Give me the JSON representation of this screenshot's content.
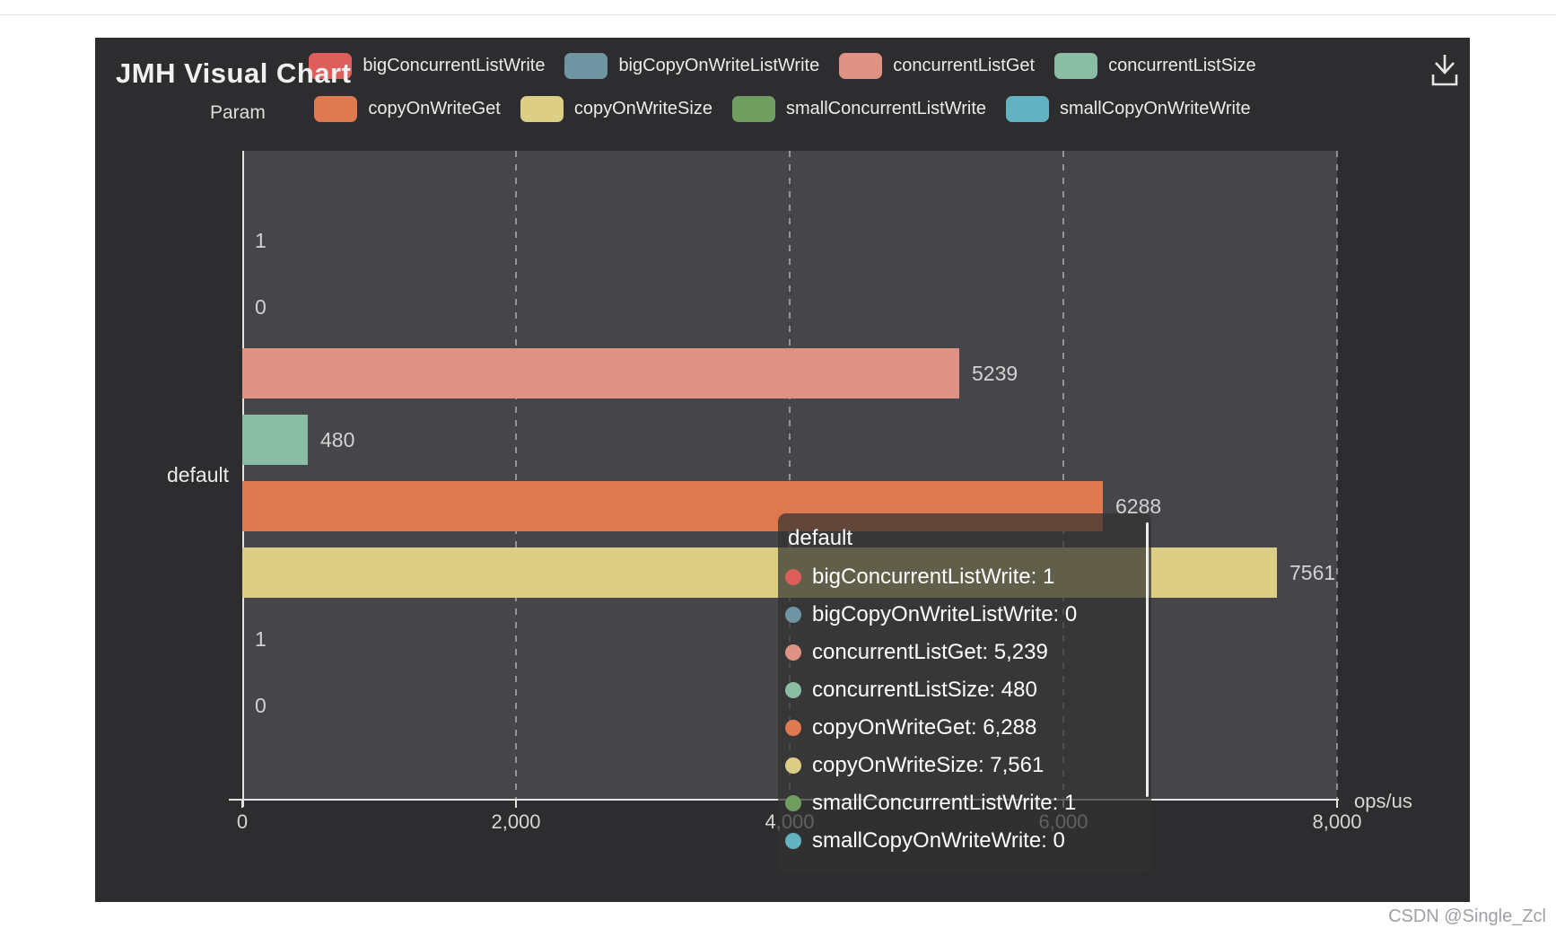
{
  "page": {
    "watermark": "CSDN @Single_Zcl"
  },
  "chart_data": {
    "type": "bar",
    "orientation": "horizontal",
    "title": "JMH Visual Chart",
    "categories": [
      "default"
    ],
    "series": [
      {
        "name": "bigConcurrentListWrite",
        "values": [
          1
        ],
        "color": "#dd5e5b",
        "bar_label": "1"
      },
      {
        "name": "bigCopyOnWriteListWrite",
        "values": [
          0
        ],
        "color": "#6e95a1",
        "bar_label": "0"
      },
      {
        "name": "concurrentListGet",
        "values": [
          5239
        ],
        "color": "#e09384",
        "bar_label": "5239"
      },
      {
        "name": "concurrentListSize",
        "values": [
          480
        ],
        "color": "#8bbda4",
        "bar_label": "480"
      },
      {
        "name": "copyOnWriteGet",
        "values": [
          6288
        ],
        "color": "#df7a50",
        "bar_label": "6288"
      },
      {
        "name": "copyOnWriteSize",
        "values": [
          7561
        ],
        "color": "#dccf85",
        "bar_label": "7561"
      },
      {
        "name": "smallConcurrentListWrite",
        "values": [
          1
        ],
        "color": "#6f9e60",
        "bar_label": "1"
      },
      {
        "name": "smallCopyOnWriteWrite",
        "values": [
          0
        ],
        "color": "#63b2c1",
        "bar_label": "0"
      }
    ],
    "xlim": [
      0,
      8000
    ],
    "x_ticks": [
      "0",
      "2,000",
      "4,000",
      "6,000",
      "8,000"
    ],
    "x_axis_name": "ops/us",
    "y_axis_name": "Param",
    "legend_position": "top",
    "grid": "dashed-vertical-gridlines"
  },
  "tooltip": {
    "title": "default",
    "rows": [
      {
        "name": "bigConcurrentListWrite",
        "value": "1"
      },
      {
        "name": "bigCopyOnWriteListWrite",
        "value": "0"
      },
      {
        "name": "concurrentListGet",
        "value": "5,239"
      },
      {
        "name": "concurrentListSize",
        "value": "480"
      },
      {
        "name": "copyOnWriteGet",
        "value": "6,288"
      },
      {
        "name": "copyOnWriteSize",
        "value": "7,561"
      },
      {
        "name": "smallConcurrentListWrite",
        "value": "1"
      },
      {
        "name": "smallCopyOnWriteWrite",
        "value": "0"
      }
    ]
  }
}
